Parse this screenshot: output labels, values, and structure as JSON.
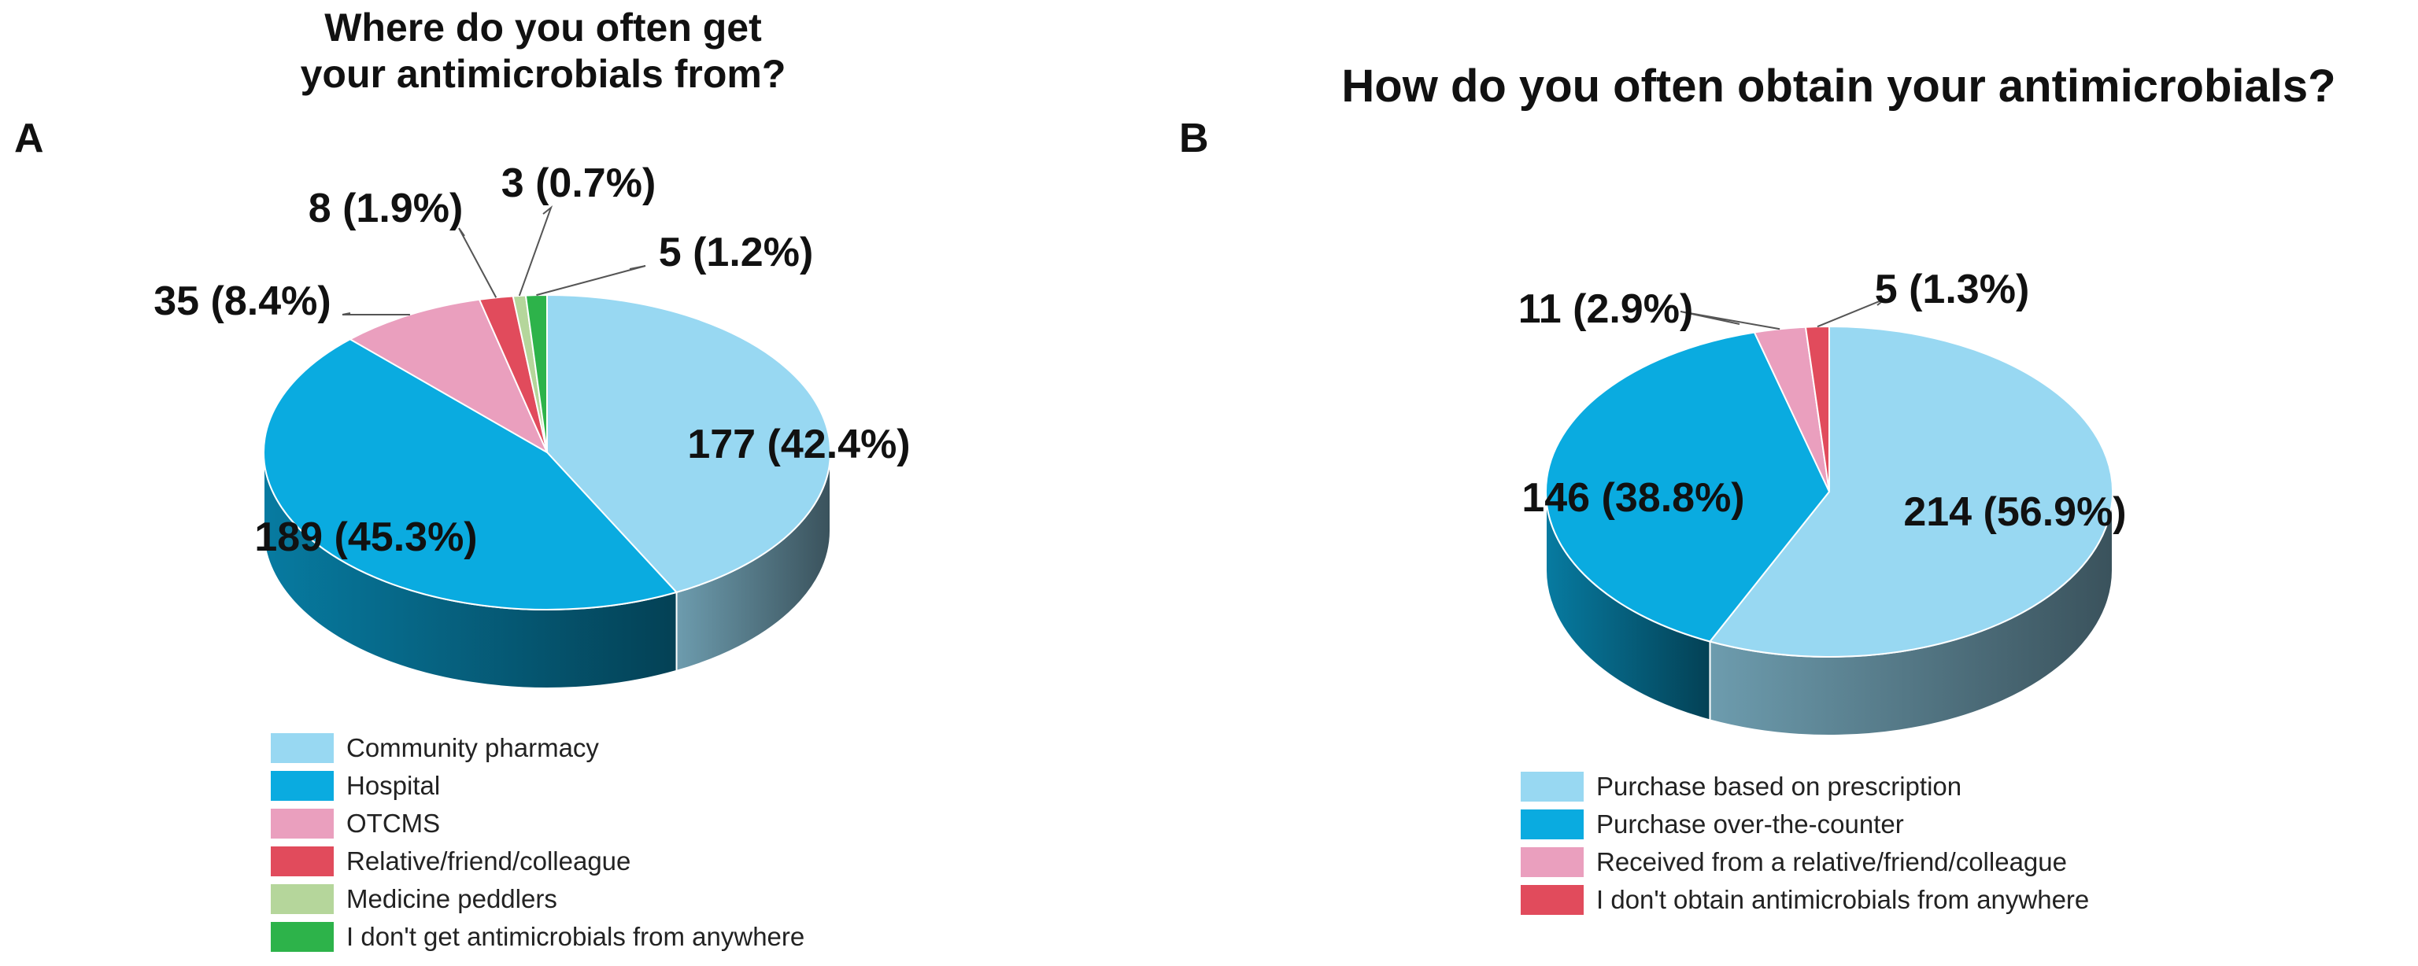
{
  "chart_data": [
    {
      "type": "pie",
      "panel_letter": "A",
      "title": "Where do you often get your antimicrobials from?",
      "title_lines": [
        "Where do you often get",
        "your antimicrobials from?"
      ],
      "slices": [
        {
          "label": "Community pharmacy",
          "value": 177,
          "percent": 42.4,
          "data_label": "177 (42.4%)",
          "color": "#98d8f2"
        },
        {
          "label": "Hospital",
          "value": 189,
          "percent": 45.3,
          "data_label": "189 (45.3%)",
          "color": "#0aabe0"
        },
        {
          "label": "OTCMS",
          "value": 35,
          "percent": 8.4,
          "data_label": "35 (8.4%)",
          "color": "#ea9fbe"
        },
        {
          "label": "Relative/friend/colleague",
          "value": 8,
          "percent": 1.9,
          "data_label": "8 (1.9%)",
          "color": "#e14b5c"
        },
        {
          "label": "Medicine peddlers",
          "value": 3,
          "percent": 0.7,
          "data_label": "3 (0.7%)",
          "color": "#b5d69b"
        },
        {
          "label": "I don't get antimicrobials from anywhere",
          "value": 5,
          "percent": 1.2,
          "data_label": "5 (1.2%)",
          "color": "#2db34a"
        }
      ],
      "legend_position": "bottom",
      "style": "3d"
    },
    {
      "type": "pie",
      "panel_letter": "B",
      "title": "How do you often obtain your antimicrobials?",
      "title_lines": [
        "How do you often obtain your antimicrobials?"
      ],
      "slices": [
        {
          "label": "Purchase based on prescription",
          "value": 214,
          "percent": 56.9,
          "data_label": "214 (56.9%)",
          "color": "#98d8f2"
        },
        {
          "label": "Purchase over-the-counter",
          "value": 146,
          "percent": 38.8,
          "data_label": "146 (38.8%)",
          "color": "#0aabe0"
        },
        {
          "label": "Received from a relative/friend/colleague",
          "value": 11,
          "percent": 2.9,
          "data_label": "11 (2.9%)",
          "color": "#ea9fbe"
        },
        {
          "label": "I don't obtain antimicrobials from anywhere",
          "value": 5,
          "percent": 1.3,
          "data_label": "5 (1.3%)",
          "color": "#e14b5c"
        }
      ],
      "legend_position": "bottom",
      "style": "3d"
    }
  ]
}
